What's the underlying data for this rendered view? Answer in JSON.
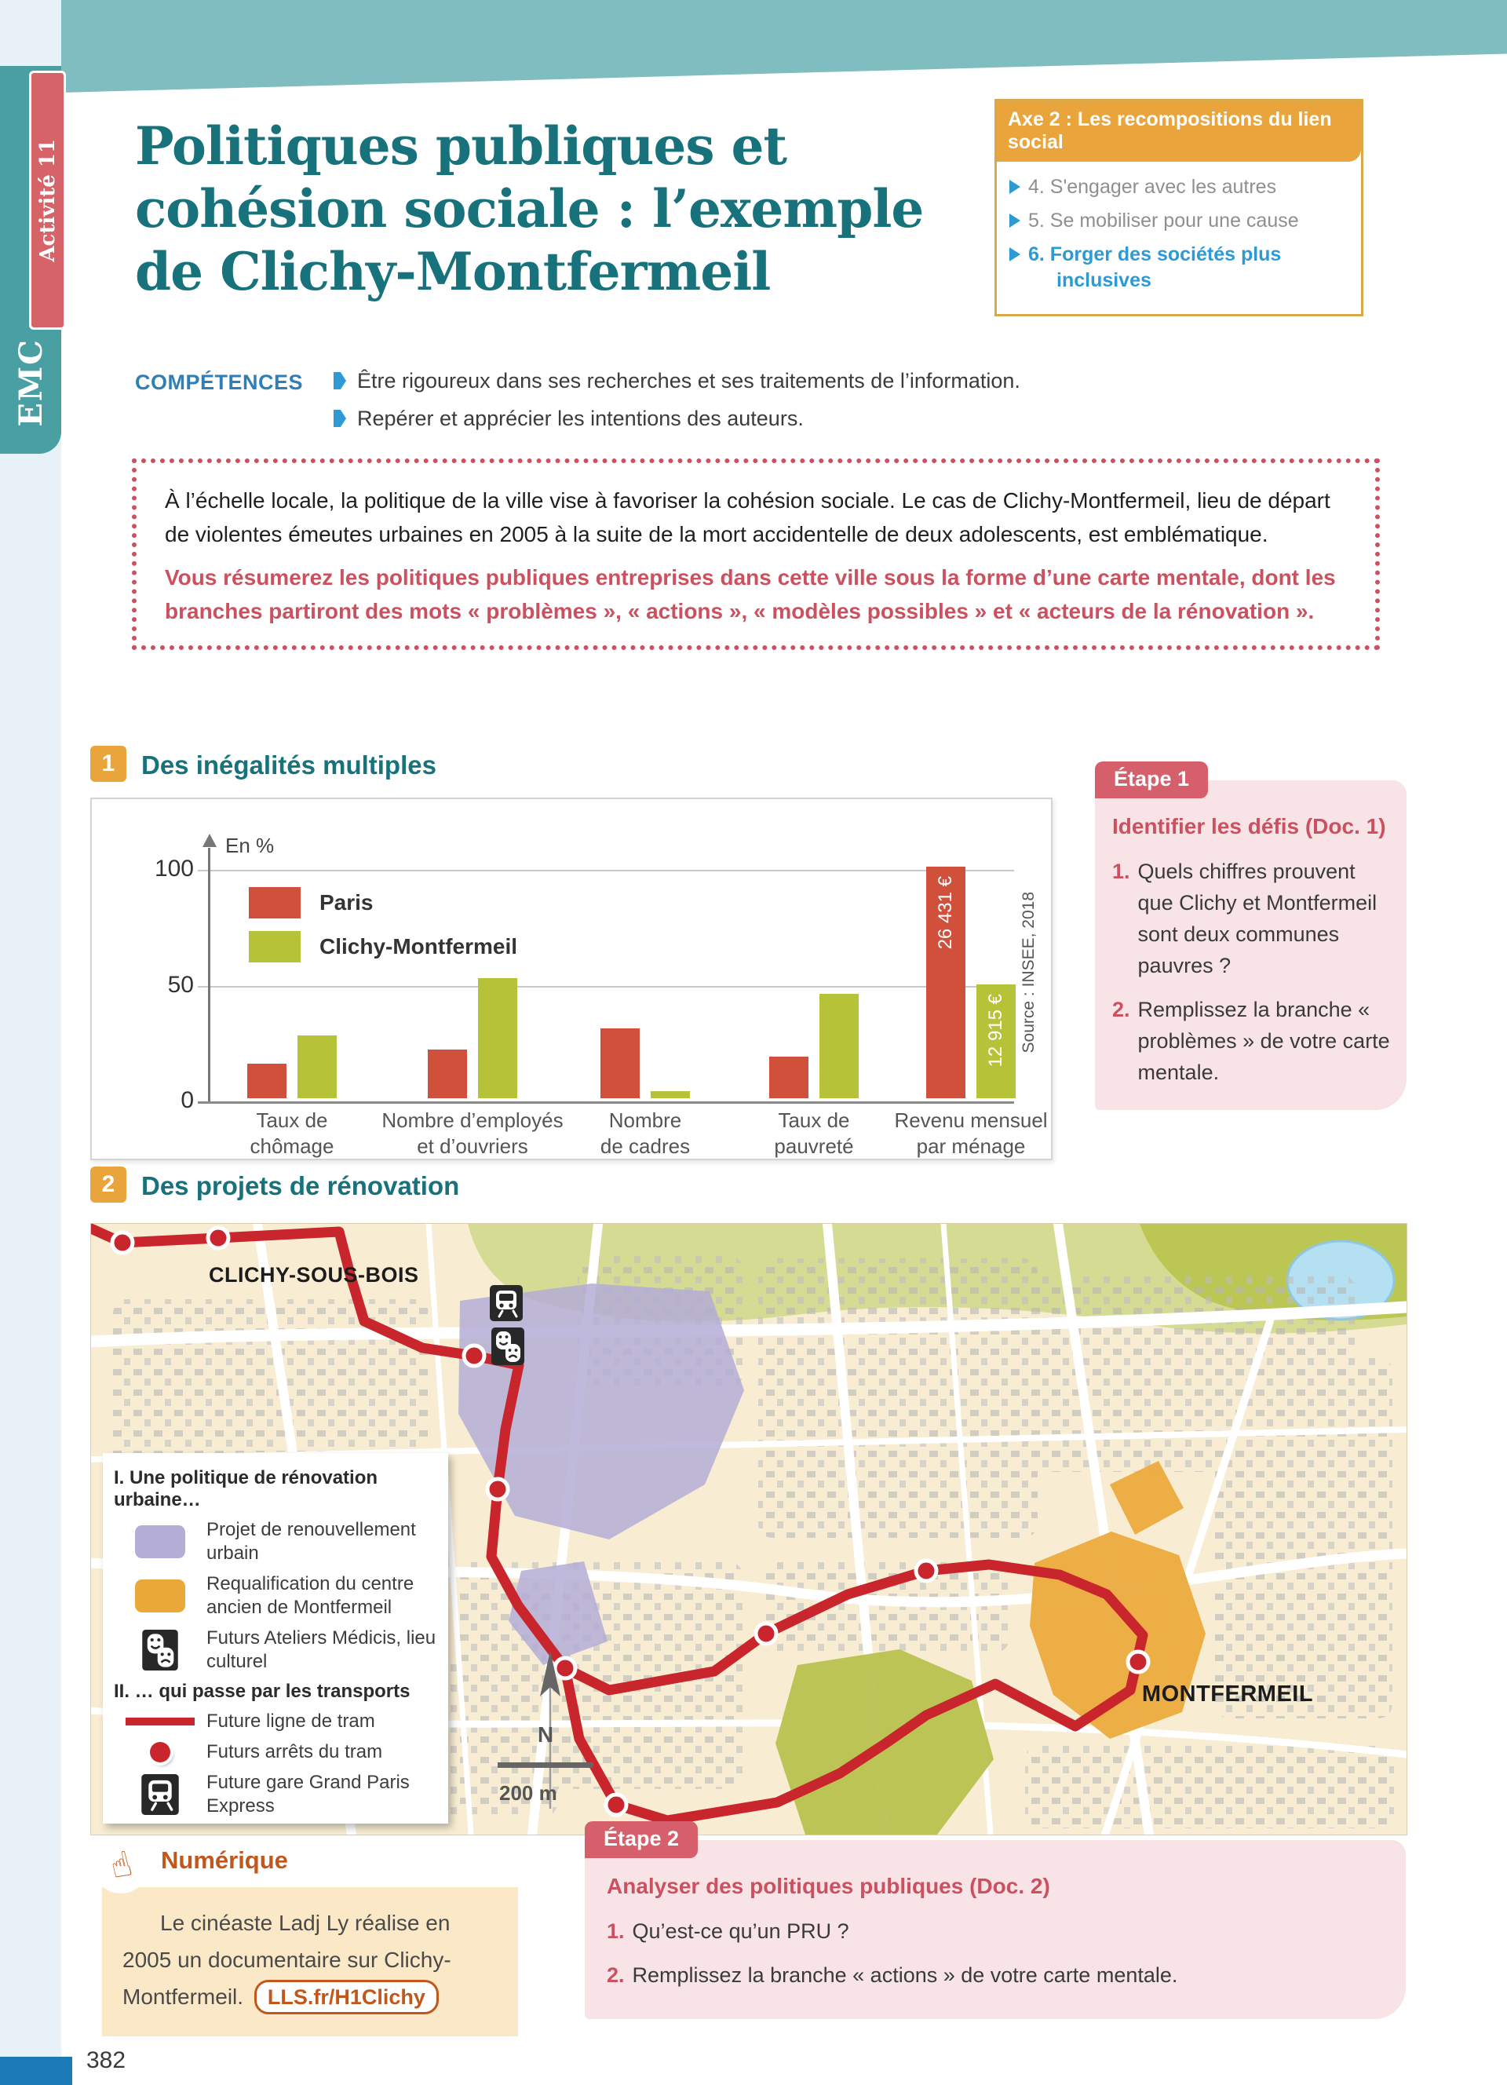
{
  "page": {
    "number": "382"
  },
  "sidebar": {
    "subject": "EMC",
    "activity": "Activité 11"
  },
  "header": {
    "title_lines": [
      "Politiques publiques et",
      "cohésion sociale : l’exemple",
      "de Clichy-Montfermeil"
    ],
    "axe_box": {
      "title": "Axe 2 : Les recompositions du lien social",
      "items": [
        {
          "label": "4. S'engager avec les autres",
          "active": false
        },
        {
          "label": "5. Se mobiliser pour une cause",
          "active": false
        },
        {
          "label": "6. Forger des sociétés plus inclusives",
          "active": true
        }
      ]
    },
    "competences": {
      "label": "COMPÉTENCES",
      "items": [
        "Être rigoureux dans ses recherches et ses traitements de l’information.",
        "Repérer et apprécier les intentions des auteurs."
      ]
    }
  },
  "intro": {
    "text": "À l’échelle locale, la politique de la ville vise à favoriser la cohésion sociale. Le cas de Clichy-Montfermeil, lieu de départ de violentes émeutes urbaines en 2005 à la suite de la mort accidentelle de deux adolescents, est emblématique.",
    "instruction": "Vous résumerez les politiques publiques entreprises dans cette ville sous la forme d’une carte mentale, dont les branches partiront des mots « problèmes », « actions », « modèles possibles » et « acteurs de la rénovation »."
  },
  "doc1": {
    "number": "1",
    "title": "Des inégalités multiples"
  },
  "chart_data": {
    "type": "bar",
    "title": "Des inégalités multiples",
    "unit_label": "En %",
    "categories": [
      "Taux de\nchômage",
      "Nombre d’employés\net d’ouvriers",
      "Nombre\nde cadres",
      "Taux de\npauvreté",
      "Revenu mensuel\npar ménage"
    ],
    "series": [
      {
        "name": "Paris",
        "color": "#d0503c",
        "values": [
          15,
          21,
          30,
          18,
          100
        ],
        "bar_labels": [
          "",
          "",
          "",
          "",
          "26 431 €"
        ]
      },
      {
        "name": "Clichy-Montfermeil",
        "color": "#b6c338",
        "values": [
          27,
          52,
          3,
          45,
          49
        ],
        "bar_labels": [
          "",
          "",
          "",
          "",
          "12 915 €"
        ]
      }
    ],
    "ylim": [
      0,
      100
    ],
    "yticks": [
      "0",
      "50",
      "100"
    ],
    "legend_position": "top-left",
    "grid": true,
    "source": "Source : INSEE, 2018"
  },
  "etape1": {
    "tab": "Étape 1",
    "title": "Identifier les défis (Doc. 1)",
    "questions": [
      {
        "num": "1.",
        "text": "Quels chiffres prouvent que Clichy et Montfermeil sont deux communes pauvres ?"
      },
      {
        "num": "2.",
        "text": "Remplissez la branche « problèmes » de votre carte mentale."
      }
    ]
  },
  "doc2": {
    "number": "2",
    "title": "Des projets de rénovation",
    "map": {
      "city_labels": [
        "CLICHY-SOUS-BOIS",
        "MONTFERMEIL"
      ],
      "compass": "N",
      "scale": "200 m",
      "legend": {
        "section1": "I. Une politique de rénovation urbaine…",
        "items1": [
          {
            "swatch": "purple-area",
            "label": "Projet de renouvellement urbain"
          },
          {
            "swatch": "orange-area",
            "label": "Requalification du centre ancien de Montfermeil"
          },
          {
            "swatch": "theater-masks-icon",
            "label": "Futurs Ateliers Médicis, lieu culturel"
          }
        ],
        "section2": "II. … qui passe par les transports",
        "items2": [
          {
            "swatch": "red-line",
            "label": "Future ligne de tram"
          },
          {
            "swatch": "red-dot",
            "label": "Futurs arrêts du tram"
          },
          {
            "swatch": "train-icon",
            "label": "Future gare Grand Paris Express"
          }
        ]
      }
    }
  },
  "numerique": {
    "title": "Numérique",
    "text": "Le cinéaste Ladj Ly réalise en 2005 un documentaire sur Clichy-Montfermeil.",
    "link": "LLS.fr/H1Clichy"
  },
  "etape2": {
    "tab": "Étape 2",
    "title": "Analyser des politiques publiques (Doc. 2)",
    "questions": [
      {
        "num": "1.",
        "text": "Qu’est-ce qu’un PRU ?"
      },
      {
        "num": "2.",
        "text": "Remplissez la branche « actions » de votre carte mentale."
      }
    ]
  },
  "colors": {
    "teal_title": "#17727c",
    "band_teal": "#7fbdc0",
    "tab_teal": "#4a9fa3",
    "accent_red": "#cc5160",
    "etape_pink": "#f8e4e6",
    "orange_badge": "#e9a43c",
    "axe_border": "#d7a94c",
    "blue_link": "#2d9ad3",
    "competence_blue": "#2e7fb5",
    "chart_red": "#d0503c",
    "chart_green": "#b6c338",
    "tram_red": "#c9252c",
    "map_purple": "#b4add6",
    "map_orange": "#eaa838",
    "map_olive": "#b9c24f",
    "numerique_orange": "#c2571c",
    "footer_blue": "#1b79b5"
  }
}
